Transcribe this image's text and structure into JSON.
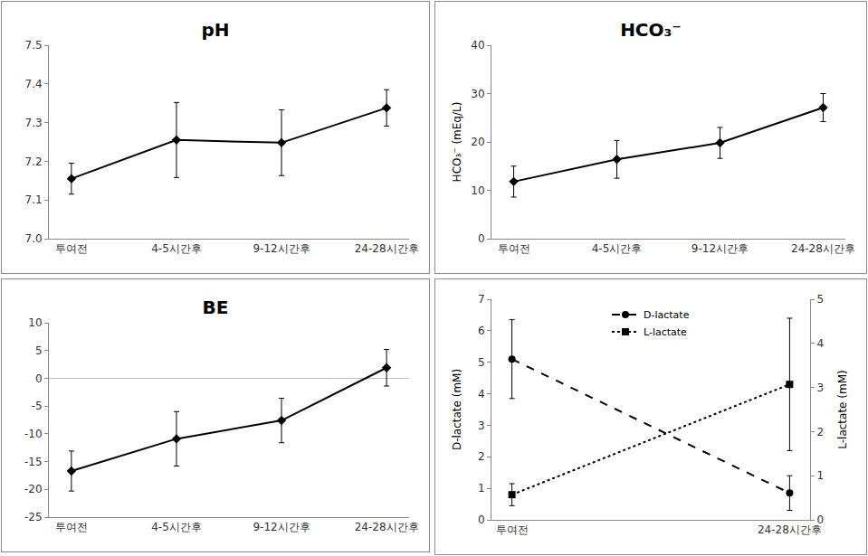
{
  "chart_data": [
    {
      "type": "line",
      "title": "pH",
      "categories": [
        "투여전",
        "4-5시간후",
        "9-12시간후",
        "24-28시간후"
      ],
      "series": [
        {
          "name": "pH",
          "color": "#000000",
          "marker": "diamond",
          "line_style": "solid",
          "values": [
            7.155,
            7.255,
            7.248,
            7.338
          ],
          "errors": [
            0.04,
            0.097,
            0.085,
            0.047
          ]
        }
      ],
      "ylim": [
        7.0,
        7.5
      ],
      "yticks": [
        {
          "value": 7.0,
          "label": "7.0"
        },
        7.1,
        7.2,
        7.3,
        7.4,
        7.5
      ],
      "grid": false
    },
    {
      "type": "line",
      "title": "HCO₃⁻",
      "y_label": "HCO₃⁻ (mEq/L)",
      "categories": [
        "투여전",
        "4-5시간후",
        "9-12시간후",
        "24-28시간후"
      ],
      "series": [
        {
          "name": "HCO₃⁻",
          "color": "#000000",
          "marker": "diamond",
          "line_style": "solid",
          "values": [
            11.8,
            16.4,
            19.8,
            27.1
          ],
          "errors": [
            3.2,
            3.9,
            3.2,
            2.9
          ]
        }
      ],
      "ylim": [
        0,
        40
      ],
      "yticks": [
        0,
        10,
        20,
        30,
        40
      ],
      "grid": false
    },
    {
      "type": "line",
      "title": "BE",
      "categories": [
        "투여전",
        "4-5시간후",
        "9-12시간후",
        "24-28시간후"
      ],
      "series": [
        {
          "name": "BE",
          "color": "#000000",
          "marker": "diamond",
          "line_style": "solid",
          "values": [
            -16.7,
            -10.9,
            -7.6,
            1.9
          ],
          "errors": [
            3.6,
            4.9,
            4.0,
            3.3
          ]
        }
      ],
      "ylim": [
        -25,
        10
      ],
      "yticks": [
        -25,
        -20,
        -15,
        -10,
        -5,
        0,
        5,
        10
      ],
      "grid": false
    },
    {
      "type": "line",
      "y_label": "D-lactate (mM)",
      "y2_label": "L-lactate (mM)",
      "categories": [
        "투여전",
        "24-28시간후"
      ],
      "series": [
        {
          "name": "D-lactate",
          "color": "#000000",
          "marker": "circle",
          "line_style": "dash",
          "values": [
            5.1,
            0.85
          ],
          "errors": [
            1.25,
            0.55
          ]
        },
        {
          "name": "L-lactate",
          "color": "#000000",
          "marker": "square",
          "line_style": "dot",
          "axis": "y2",
          "values": [
            0.57,
            3.07
          ],
          "errors": [
            0.25,
            1.5
          ]
        }
      ],
      "ylim": [
        0,
        7
      ],
      "yticks": [
        0,
        1,
        2,
        3,
        4,
        5,
        6,
        7
      ],
      "y2lim": [
        0,
        5
      ],
      "y2ticks": [
        0,
        1,
        2,
        3,
        4,
        5
      ],
      "legend": "top",
      "grid": false
    }
  ]
}
